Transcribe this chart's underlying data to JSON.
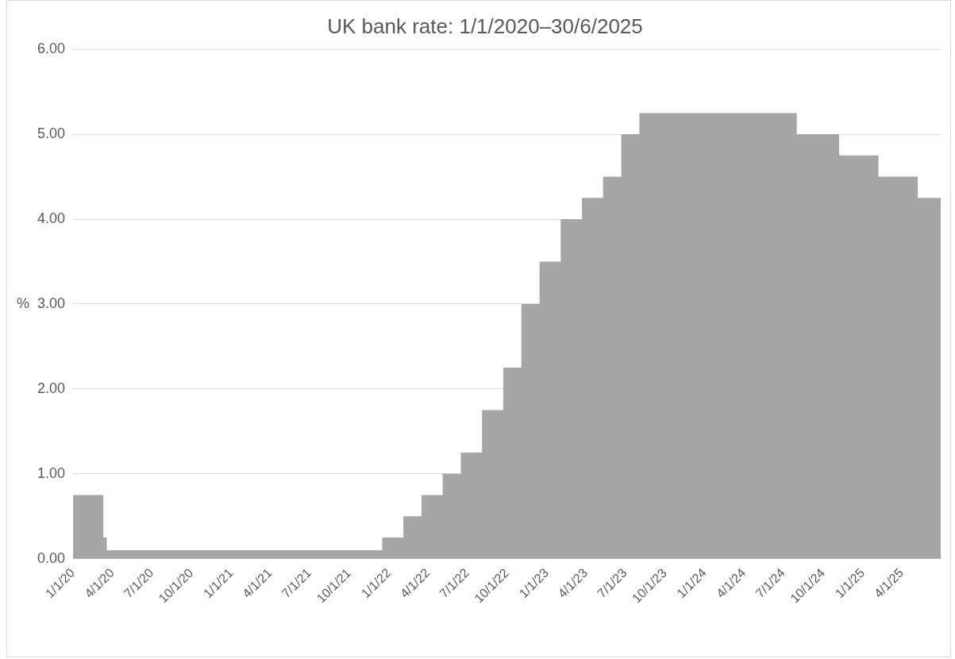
{
  "chart_data": {
    "type": "area",
    "title": "UK bank rate: 1/1/2020–30/6/2025",
    "ylabel": "%",
    "x": [
      "2020-01-01",
      "2020-03-11",
      "2020-03-11",
      "2020-03-19",
      "2020-03-19",
      "2021-12-16",
      "2021-12-16",
      "2022-02-03",
      "2022-02-03",
      "2022-03-17",
      "2022-03-17",
      "2022-05-05",
      "2022-05-05",
      "2022-06-16",
      "2022-06-16",
      "2022-08-04",
      "2022-08-04",
      "2022-09-22",
      "2022-09-22",
      "2022-11-03",
      "2022-11-03",
      "2022-12-15",
      "2022-12-15",
      "2023-02-02",
      "2023-02-02",
      "2023-03-23",
      "2023-03-23",
      "2023-05-11",
      "2023-05-11",
      "2023-06-22",
      "2023-06-22",
      "2023-08-03",
      "2023-08-03",
      "2024-08-01",
      "2024-08-01",
      "2024-11-07",
      "2024-11-07",
      "2025-02-06",
      "2025-02-06",
      "2025-05-08",
      "2025-05-08",
      "2025-06-30"
    ],
    "series": [
      {
        "color": "#a6a6a6",
        "values": [
          0.75,
          0.75,
          0.25,
          0.25,
          0.1,
          0.1,
          0.25,
          0.25,
          0.5,
          0.5,
          0.75,
          0.75,
          1.0,
          1.0,
          1.25,
          1.25,
          1.75,
          1.75,
          2.25,
          2.25,
          3.0,
          3.0,
          3.5,
          3.5,
          4.0,
          4.0,
          4.25,
          4.25,
          4.5,
          4.5,
          5.0,
          5.0,
          5.25,
          5.25,
          5.0,
          5.0,
          4.75,
          4.75,
          4.5,
          4.5,
          4.25,
          4.25
        ]
      }
    ],
    "xlim": [
      "2020-01-01",
      "2025-06-30"
    ],
    "xticks": [
      {
        "value": "2020-01-01",
        "label": "1/1/20"
      },
      {
        "value": "2020-04-01",
        "label": "4/1/20"
      },
      {
        "value": "2020-07-01",
        "label": "7/1/20"
      },
      {
        "value": "2020-10-01",
        "label": "10/1/20"
      },
      {
        "value": "2021-01-01",
        "label": "1/1/21"
      },
      {
        "value": "2021-04-01",
        "label": "4/1/21"
      },
      {
        "value": "2021-07-01",
        "label": "7/1/21"
      },
      {
        "value": "2021-10-01",
        "label": "10/1/21"
      },
      {
        "value": "2022-01-01",
        "label": "1/1/22"
      },
      {
        "value": "2022-04-01",
        "label": "4/1/22"
      },
      {
        "value": "2022-07-01",
        "label": "7/1/22"
      },
      {
        "value": "2022-10-01",
        "label": "10/1/22"
      },
      {
        "value": "2023-01-01",
        "label": "1/1/23"
      },
      {
        "value": "2023-04-01",
        "label": "4/1/23"
      },
      {
        "value": "2023-07-01",
        "label": "7/1/23"
      },
      {
        "value": "2023-10-01",
        "label": "10/1/23"
      },
      {
        "value": "2024-01-01",
        "label": "1/1/24"
      },
      {
        "value": "2024-04-01",
        "label": "4/1/24"
      },
      {
        "value": "2024-07-01",
        "label": "7/1/24"
      },
      {
        "value": "2024-10-01",
        "label": "10/1/24"
      },
      {
        "value": "2025-01-01",
        "label": "1/1/25"
      },
      {
        "value": "2025-04-01",
        "label": "4/1/25"
      }
    ],
    "ylim": [
      0,
      6
    ],
    "yticks": [
      {
        "value": 0,
        "label": "0.00"
      },
      {
        "value": 1,
        "label": "1.00"
      },
      {
        "value": 2,
        "label": "2.00"
      },
      {
        "value": 3,
        "label": "3.00"
      },
      {
        "value": 4,
        "label": "4.00"
      },
      {
        "value": 5,
        "label": "5.00"
      },
      {
        "value": 6,
        "label": "6.00"
      }
    ],
    "grid": "y"
  }
}
